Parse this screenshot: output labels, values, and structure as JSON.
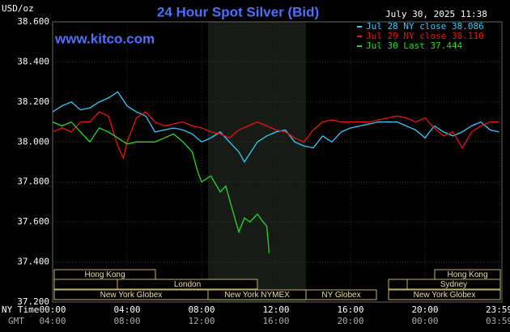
{
  "chart_data": {
    "type": "line",
    "title": "24 Hour Spot Silver (Bid)",
    "timestamp": "July 30, 2025 11:38",
    "watermark": "www.kitco.com",
    "y_label": "USD/oz",
    "x_label": "NY Time",
    "x2_label": "GMT",
    "xlim": [
      0,
      24
    ],
    "xticks": [
      {
        "value": 0,
        "label": "00:00"
      },
      {
        "value": 4,
        "label": "04:00"
      },
      {
        "value": 8,
        "label": "08:00"
      },
      {
        "value": 12,
        "label": "12:00"
      },
      {
        "value": 16,
        "label": "16:00"
      },
      {
        "value": 20,
        "label": "20:00"
      },
      {
        "value": 23.98,
        "label": "23:59"
      }
    ],
    "x2ticks": [
      "04:00",
      "08:00",
      "12:00",
      "16:00",
      "20:00",
      "00:00",
      "03:59"
    ],
    "ylim": [
      37.2,
      38.6
    ],
    "yticks": [
      {
        "value": 37.2,
        "label": "37.200"
      },
      {
        "value": 37.4,
        "label": "37.400"
      },
      {
        "value": 37.6,
        "label": "37.600"
      },
      {
        "value": 37.8,
        "label": "37.800"
      },
      {
        "value": 38.0,
        "label": "38.000"
      },
      {
        "value": 38.2,
        "label": "38.200"
      },
      {
        "value": 38.4,
        "label": "38.400"
      },
      {
        "value": 38.6,
        "label": "38.600"
      }
    ],
    "grid": true,
    "sessions": [
      "Hong Kong",
      "London",
      "New York Globex",
      "New York NYMEX",
      "NY Globex",
      "Hong Kong",
      "Sydney",
      "New York Globex"
    ],
    "series": [
      {
        "name": "Jul 28 NY close 38.086",
        "color": "#33ccff",
        "x": [
          0,
          0.5,
          1,
          1.5,
          2,
          2.5,
          3,
          3.5,
          4,
          4.5,
          5,
          5.5,
          6,
          6.5,
          7,
          7.5,
          8,
          8.5,
          9,
          9.5,
          10,
          10.3,
          11,
          11.5,
          12,
          12.5,
          13,
          13.5,
          14,
          14.5,
          15,
          15.5,
          16,
          16.5,
          17,
          17.5,
          18,
          18.5,
          19,
          19.5,
          20,
          20.5,
          21,
          21.5,
          22,
          22.5,
          23,
          23.5,
          23.98
        ],
        "values": [
          38.15,
          38.18,
          38.2,
          38.16,
          38.17,
          38.2,
          38.22,
          38.25,
          38.18,
          38.15,
          38.13,
          38.05,
          38.06,
          38.07,
          38.06,
          38.04,
          38.0,
          38.02,
          38.05,
          38.0,
          37.95,
          37.9,
          38.0,
          38.03,
          38.05,
          38.06,
          38.0,
          37.98,
          37.97,
          38.03,
          38.0,
          38.05,
          38.07,
          38.08,
          38.09,
          38.1,
          38.1,
          38.1,
          38.08,
          38.06,
          38.02,
          38.08,
          38.05,
          38.03,
          38.05,
          38.08,
          38.1,
          38.06,
          38.05
        ]
      },
      {
        "name": "Jul 29 NY close 38.110",
        "color": "#ee1111",
        "x": [
          0,
          0.5,
          1,
          1.5,
          2,
          2.5,
          3,
          3.5,
          3.8,
          4,
          4.5,
          5,
          5.5,
          6,
          6.5,
          7,
          7.5,
          8,
          8.5,
          9,
          9.5,
          10,
          10.5,
          11,
          11.5,
          12,
          12.5,
          13,
          13.5,
          14,
          14.5,
          15,
          15.5,
          16,
          17,
          18,
          18.5,
          19,
          19.5,
          20,
          20.5,
          21,
          21.5,
          22,
          22.5,
          23,
          23.5,
          23.98
        ],
        "values": [
          38.05,
          38.07,
          38.05,
          38.1,
          38.1,
          38.15,
          38.13,
          37.98,
          37.92,
          38.0,
          38.12,
          38.15,
          38.1,
          38.08,
          38.09,
          38.1,
          38.08,
          38.07,
          38.05,
          38.04,
          38.02,
          38.06,
          38.08,
          38.1,
          38.08,
          38.06,
          38.05,
          38.02,
          38.0,
          38.06,
          38.1,
          38.11,
          38.1,
          38.1,
          38.1,
          38.12,
          38.13,
          38.12,
          38.1,
          38.12,
          38.07,
          38.03,
          38.05,
          37.97,
          38.05,
          38.08,
          38.1,
          38.1
        ]
      },
      {
        "name": "Jul 30 Last 37.444",
        "color": "#22dd22",
        "x": [
          0,
          0.5,
          1,
          1.5,
          2,
          2.5,
          3,
          3.5,
          4,
          4.5,
          5,
          5.5,
          6,
          6.5,
          7,
          7.5,
          7.8,
          8,
          8.5,
          9,
          9.3,
          9.6,
          10,
          10.3,
          10.6,
          11,
          11.3,
          11.5,
          11.63
        ],
        "values": [
          38.1,
          38.08,
          38.1,
          38.05,
          38.0,
          38.07,
          38.05,
          38.02,
          37.99,
          38.0,
          38.0,
          38.0,
          38.02,
          38.04,
          38.0,
          37.95,
          37.85,
          37.8,
          37.83,
          37.75,
          37.78,
          37.68,
          37.55,
          37.62,
          37.6,
          37.64,
          37.6,
          37.58,
          37.444
        ]
      }
    ]
  }
}
